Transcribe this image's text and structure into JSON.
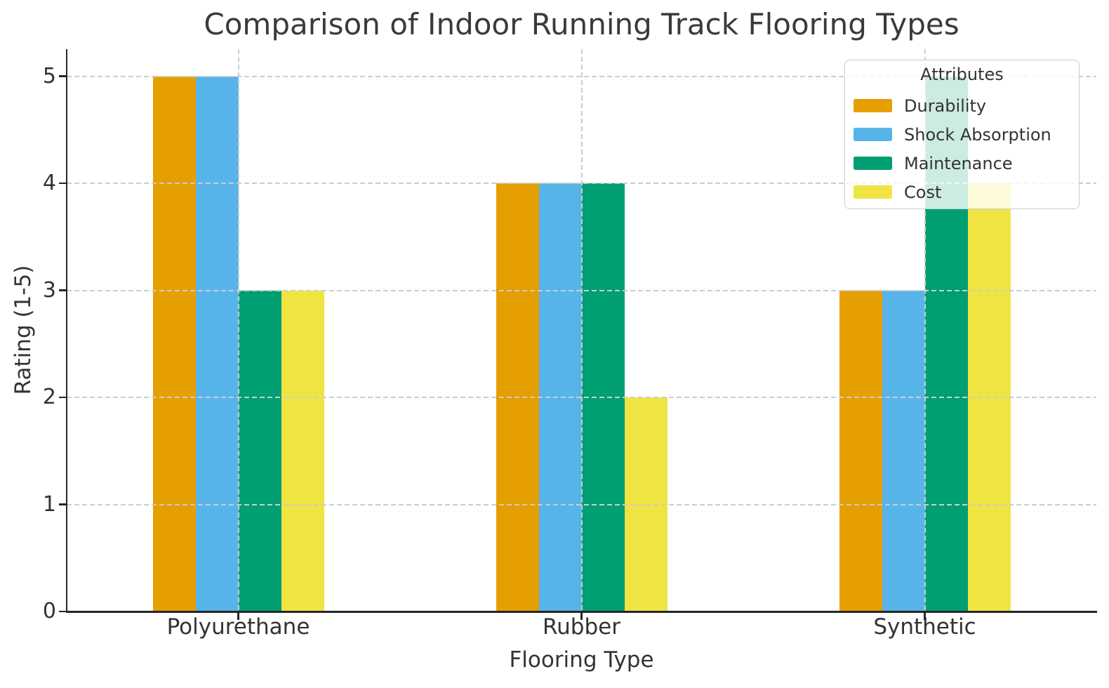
{
  "chart_data": {
    "type": "bar",
    "title": "Comparison of Indoor Running Track Flooring Types",
    "xlabel": "Flooring Type",
    "ylabel": "Rating (1-5)",
    "categories": [
      "Polyurethane",
      "Rubber",
      "Synthetic"
    ],
    "series": [
      {
        "name": "Durability",
        "color": "#E69F00",
        "values": [
          5,
          4,
          3
        ]
      },
      {
        "name": "Shock Absorption",
        "color": "#56B4E9",
        "values": [
          5,
          4,
          3
        ]
      },
      {
        "name": "Maintenance",
        "color": "#009E73",
        "values": [
          3,
          4,
          5
        ]
      },
      {
        "name": "Cost",
        "color": "#F0E442",
        "values": [
          3,
          2,
          4
        ]
      }
    ],
    "yticks": [
      0,
      1,
      2,
      3,
      4,
      5
    ],
    "ylim": [
      0,
      5.25
    ],
    "grid": true,
    "grid_style": "dashed",
    "legend": {
      "title": "Attributes",
      "position": "upper-right"
    }
  },
  "style": {
    "background": "#ffffff",
    "grid_color": "#cccccc",
    "spine_color": "#262626",
    "text_color": "#333333",
    "title_color": "#3a3a3a",
    "legend_border_color": "#cccccc",
    "legend_background": "rgba(255,255,255,0.8)"
  }
}
